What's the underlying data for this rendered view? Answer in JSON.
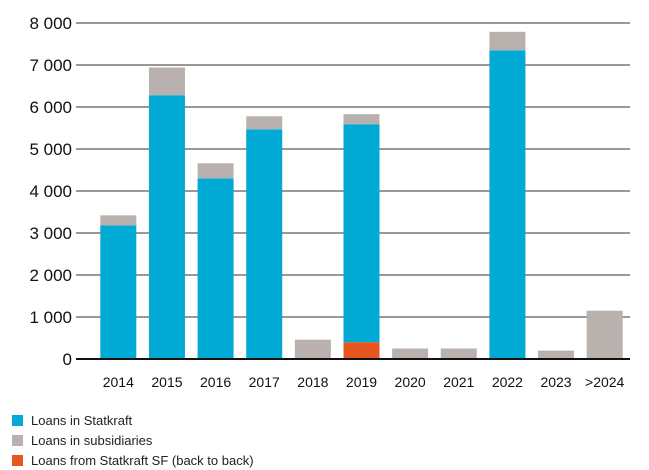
{
  "chart_data": {
    "type": "bar",
    "stacked": true,
    "categories": [
      "2014",
      "2015",
      "2016",
      "2017",
      "2018",
      "2019",
      "2020",
      "2021",
      "2022",
      "2023",
      ">2024"
    ],
    "series": [
      {
        "name": "Loans from Statkraft SF (back to back)",
        "color": "#e8561f",
        "values": [
          0,
          0,
          0,
          0,
          0,
          400,
          0,
          0,
          0,
          0,
          0
        ]
      },
      {
        "name": "Loans in Statkraft",
        "color": "#00aad4",
        "values": [
          3180,
          6280,
          4300,
          5470,
          0,
          5190,
          0,
          0,
          7350,
          0,
          0
        ]
      },
      {
        "name": "Loans in subsidiaries",
        "color": "#b9b1ad",
        "values": [
          240,
          660,
          360,
          310,
          460,
          240,
          250,
          250,
          440,
          200,
          1150
        ]
      }
    ],
    "yticks": [
      "0",
      "1 000",
      "2 000",
      "3 000",
      "4 000",
      "5 000",
      "6 000",
      "7 000",
      "8 000"
    ],
    "ylim": [
      0,
      8000
    ],
    "grid": true,
    "legend_position": "bottom-left"
  },
  "legend": [
    {
      "label": "Loans in Statkraft",
      "color": "#00aad4"
    },
    {
      "label": "Loans in subsidiaries",
      "color": "#b9b1ad"
    },
    {
      "label": "Loans from Statkraft SF (back to back)",
      "color": "#e8561f"
    }
  ]
}
